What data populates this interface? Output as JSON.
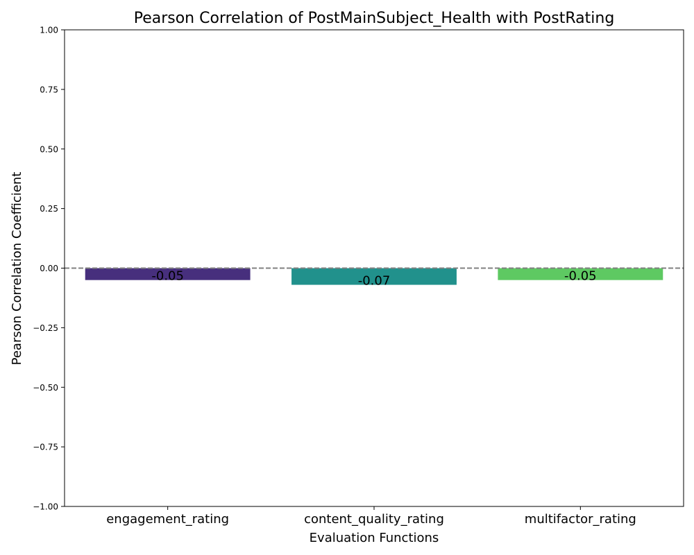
{
  "chart_data": {
    "type": "bar",
    "title": "Pearson Correlation of PostMainSubject_Health with PostRating",
    "xlabel": "Evaluation Functions",
    "ylabel": "Pearson Correlation Coefficient",
    "categories": [
      "engagement_rating",
      "content_quality_rating",
      "multifactor_rating"
    ],
    "values": [
      -0.05,
      -0.07,
      -0.05
    ],
    "value_labels": [
      "-0.05",
      "-0.07",
      "-0.05"
    ],
    "bar_colors": [
      "#472f7d",
      "#21918c",
      "#5ec962"
    ],
    "ylim": [
      -1.0,
      1.0
    ],
    "yticks": [
      1.0,
      0.75,
      0.5,
      0.25,
      0.0,
      -0.25,
      -0.5,
      -0.75,
      -1.0
    ],
    "ytick_labels": [
      "1.00",
      "0.75",
      "0.50",
      "0.25",
      "0.00",
      "−0.25",
      "−0.50",
      "−0.75",
      "−1.00"
    ],
    "reference_line": 0.0,
    "reference_line_color": "#808080",
    "grid": false,
    "legend": "none"
  }
}
